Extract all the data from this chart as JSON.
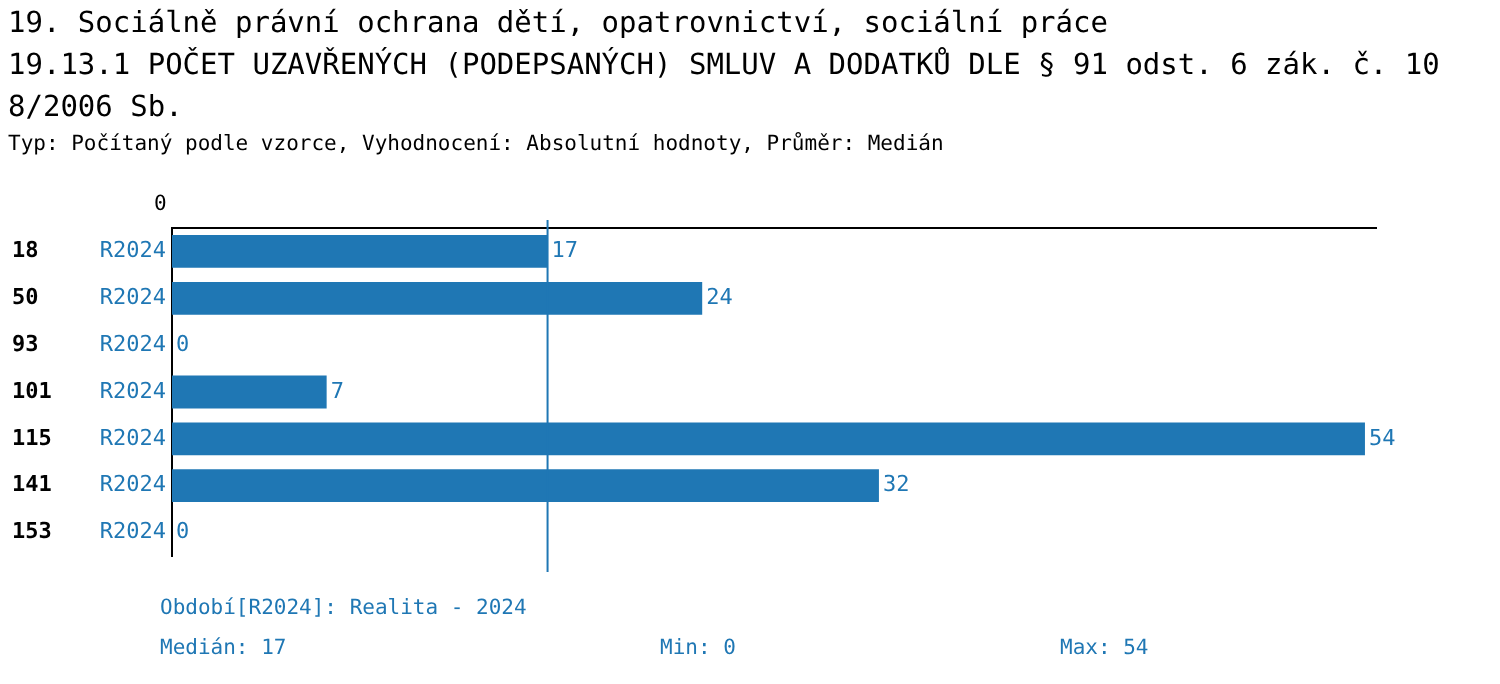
{
  "chart_data": {
    "type": "bar",
    "orientation": "horizontal",
    "title": "19. Sociálně právní ochrana dětí, opatrovnictví, sociální práce\n19.13.1 POČET UZAVŘENÝCH (PODEPSANÝCH) SMLUV A DODATKŮ DLE § 91 odst. 6 zák. č. 108/2006 Sb.",
    "subtitle": "Typ: Počítaný podle vzorce, Vyhodnocení: Absolutní hodnoty, Průměr: Medián",
    "categories": [
      "18",
      "50",
      "93",
      "101",
      "115",
      "141",
      "153"
    ],
    "series": [
      {
        "name": "R2024",
        "color": "#1f77b4",
        "values": [
          17,
          24,
          0,
          7,
          54,
          32,
          0
        ]
      }
    ],
    "xlim": [
      0,
      54.5
    ],
    "data_labels": true,
    "grid": false,
    "legend": false,
    "ref_lines": [
      {
        "axis": "x",
        "value": 17,
        "color": "#1f77b4"
      }
    ],
    "annotations": [
      "0",
      "Období[R2024]: Realita - 2024",
      "Medián: 17",
      "Min: 0",
      "Max: 54"
    ]
  }
}
